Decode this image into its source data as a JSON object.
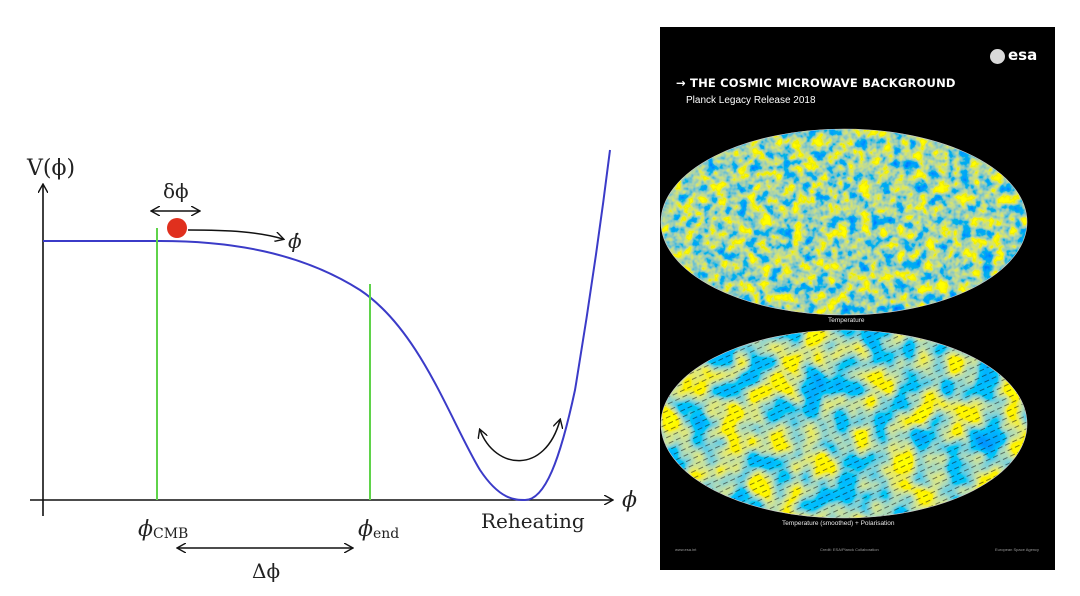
{
  "diagram": {
    "y_axis_label": "V(ϕ)",
    "x_axis_label": "ϕ",
    "delta_phi_label": "δϕ",
    "phi_dot_label": "ϕ̇",
    "phi_cmb_label": "ϕ",
    "phi_cmb_sub": "CMB",
    "phi_end_label": "ϕ",
    "phi_end_sub": "end",
    "reheating_label": "Reheating",
    "big_delta_phi_label": "Δϕ",
    "colors": {
      "curve": "#3b3bc8",
      "marker_lines": "#5fd34a",
      "ball": "#e0301e",
      "axes": "#111111"
    }
  },
  "poster": {
    "logo_text": "esa",
    "title": "→ THE COSMIC MICROWAVE BACKGROUND",
    "subtitle": "Planck Legacy Release 2018",
    "map1_caption": "Temperature",
    "map2_caption": "Temperature (smoothed) + Polarisation",
    "footer_left": "www.esa.int",
    "footer_center": "Credit: ESA/Planck Collaboration",
    "footer_right": "European Space Agency",
    "colors": {
      "background": "#000000",
      "warm": "#d9662a",
      "cool": "#3f8fd0"
    }
  }
}
